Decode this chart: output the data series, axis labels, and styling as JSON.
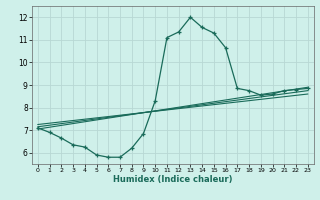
{
  "xlabel": "Humidex (Indice chaleur)",
  "bg_color": "#cff0ea",
  "grid_color": "#b8d8d4",
  "line_color": "#1a6b5a",
  "xlim": [
    -0.5,
    23.5
  ],
  "ylim": [
    5.5,
    12.5
  ],
  "xticks": [
    0,
    1,
    2,
    3,
    4,
    5,
    6,
    7,
    8,
    9,
    10,
    11,
    12,
    13,
    14,
    15,
    16,
    17,
    18,
    19,
    20,
    21,
    22,
    23
  ],
  "yticks": [
    6,
    7,
    8,
    9,
    10,
    11,
    12
  ],
  "line1_x": [
    0,
    1,
    2,
    3,
    4,
    5,
    6,
    7,
    8,
    9,
    10,
    11,
    12,
    13,
    14,
    15,
    16,
    17,
    18,
    19,
    20,
    21,
    22,
    23
  ],
  "line1_y": [
    7.1,
    6.9,
    6.65,
    6.35,
    6.25,
    5.9,
    5.8,
    5.8,
    6.2,
    6.85,
    8.3,
    11.1,
    11.35,
    12.0,
    11.55,
    11.3,
    10.65,
    8.85,
    8.75,
    8.55,
    8.6,
    8.75,
    8.8,
    8.85
  ],
  "line2_x": [
    0,
    23
  ],
  "line2_y": [
    7.05,
    8.9
  ],
  "line3_x": [
    0,
    23
  ],
  "line3_y": [
    7.15,
    8.75
  ],
  "line4_x": [
    0,
    23
  ],
  "line4_y": [
    7.25,
    8.6
  ]
}
